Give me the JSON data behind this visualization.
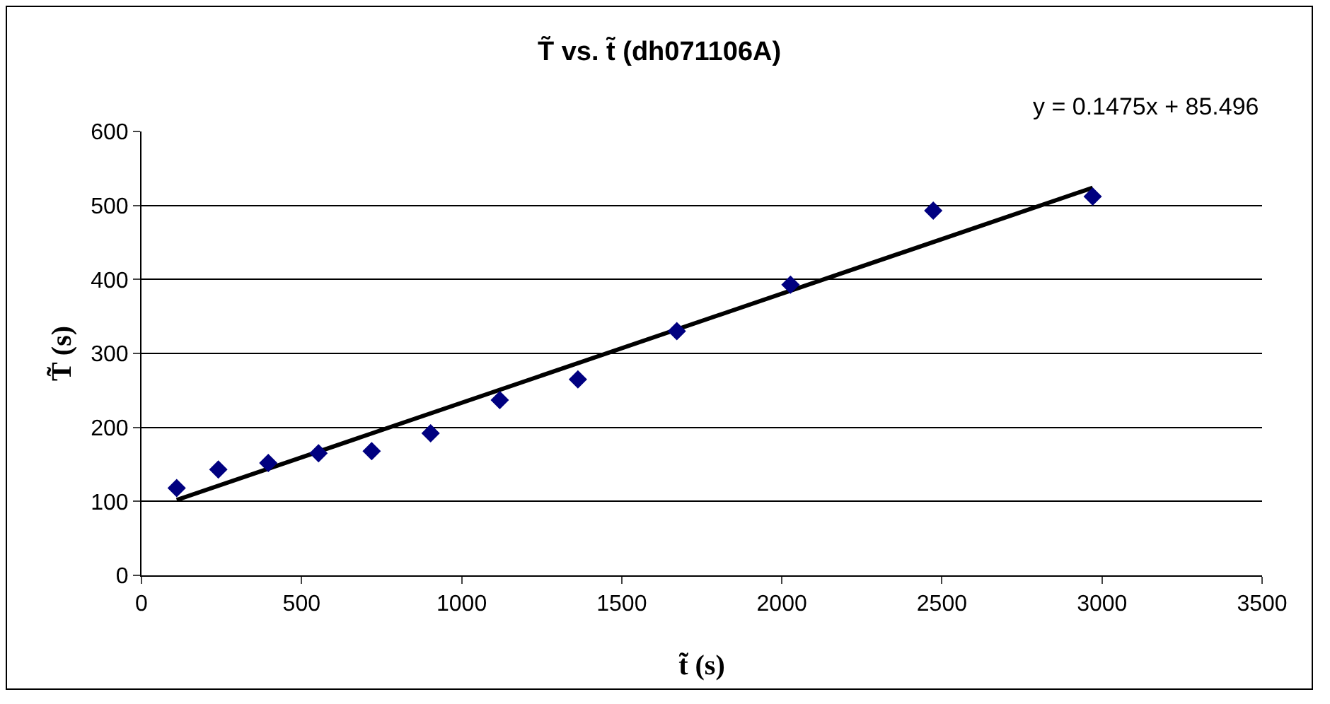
{
  "chart_data": {
    "type": "scatter",
    "title": "T̃ vs. t̃ (dh071106A)",
    "xlabel": "t̃ (s)",
    "ylabel": "T̃ (s)",
    "annotations": [
      "y = 0.1475x + 85.496"
    ],
    "series": [
      {
        "color": "#000080",
        "x": [
          110,
          240,
          396,
          553,
          719,
          903,
          1119,
          1363,
          1672,
          2027,
          2473,
          2971
        ],
        "values": [
          118,
          143,
          152,
          165,
          168,
          192,
          237,
          265,
          330,
          393,
          493,
          512
        ]
      },
      {
        "type": "line",
        "color": "#000000",
        "marker": "none",
        "x": [
          110,
          2971
        ],
        "values": [
          102,
          524
        ]
      }
    ],
    "xlim": [
      0,
      3500
    ],
    "xticks": [
      0,
      500,
      1000,
      1500,
      2000,
      2500,
      3000,
      3500
    ],
    "ylim": [
      0,
      600
    ],
    "yticks": [
      0,
      100,
      200,
      300,
      400,
      500,
      600
    ],
    "grid": "y",
    "marker": "diamond"
  }
}
